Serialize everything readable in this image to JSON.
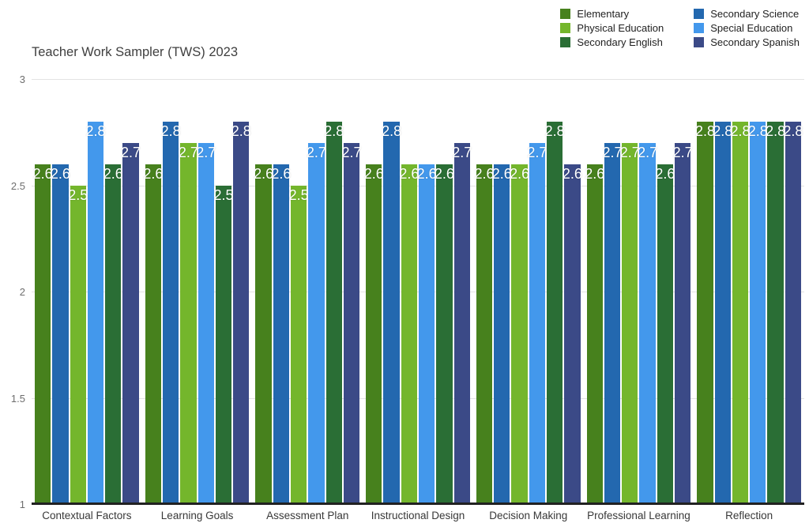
{
  "chart_data": {
    "type": "bar",
    "title": "Teacher Work Sampler (TWS) 2023",
    "categories": [
      "Contextual Factors",
      "Learning Goals",
      "Assessment Plan",
      "Instructional Design",
      "Decision Making",
      "Professional Learning",
      "Reflection"
    ],
    "series": [
      {
        "name": "Elementary",
        "color": "#47811d",
        "values": [
          2.6,
          2.6,
          2.6,
          2.6,
          2.6,
          2.6,
          2.8
        ]
      },
      {
        "name": "Secondary Science",
        "color": "#2368af",
        "values": [
          2.6,
          2.8,
          2.6,
          2.8,
          2.6,
          2.7,
          2.8
        ]
      },
      {
        "name": "Physical Education",
        "color": "#74b62c",
        "values": [
          2.5,
          2.7,
          2.5,
          2.6,
          2.6,
          2.7,
          2.8
        ]
      },
      {
        "name": "Special Education",
        "color": "#4398ec",
        "values": [
          2.8,
          2.7,
          2.7,
          2.6,
          2.7,
          2.7,
          2.8
        ]
      },
      {
        "name": "Secondary English",
        "color": "#2a6e35",
        "values": [
          2.6,
          2.5,
          2.8,
          2.6,
          2.8,
          2.6,
          2.8
        ]
      },
      {
        "name": "Secondary Spanish",
        "color": "#3b4a87",
        "values": [
          2.7,
          2.8,
          2.7,
          2.7,
          2.6,
          2.7,
          2.8
        ]
      }
    ],
    "y_axis": {
      "min": 1,
      "max": 3,
      "ticks": [
        "3",
        "2.5",
        "2",
        "1.5",
        "1"
      ]
    },
    "legend_position": "top-right",
    "value_labels": "shown, one decimal, white",
    "grid": "horizontal gridlines at 1.5, 2, 2.5, 3",
    "style": {
      "background": "#ffffff",
      "gridline_color": "#e3e3e3",
      "axis_line_color": "#212121",
      "tick_label_color": "#6e6e6e",
      "category_label_color": "#383838",
      "title_color": "#3f3f3f",
      "value_label_color": "#ffffff"
    }
  }
}
